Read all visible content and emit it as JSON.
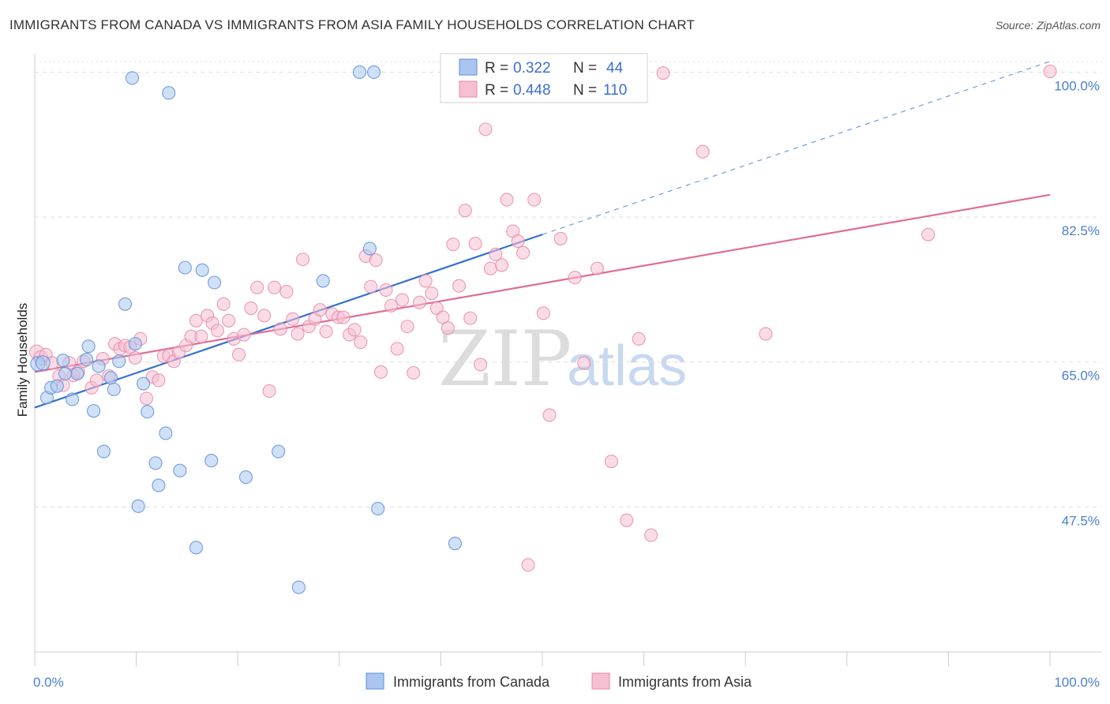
{
  "header": {
    "title": "IMMIGRANTS FROM CANADA VS IMMIGRANTS FROM ASIA FAMILY HOUSEHOLDS CORRELATION CHART",
    "source": "Source: ZipAtlas.com"
  },
  "watermark": {
    "zip": "ZIP",
    "atlas": "atlas"
  },
  "legend_top": {
    "r_label": "R =",
    "n_label": "N =",
    "rows": [
      {
        "r": "0.322",
        "n": "44"
      },
      {
        "r": "0.448",
        "n": "110"
      }
    ]
  },
  "colors": {
    "canada_fill": "#aac6f0",
    "canada_stroke": "#5a8fd8",
    "canada_line": "#3370d0",
    "asia_fill": "#f6bfd2",
    "asia_stroke": "#e889aa",
    "asia_line": "#e06b98",
    "tick_text": "#4a7fd0",
    "grid": "#dddddd"
  },
  "chart_data": {
    "type": "scatter",
    "xlabel": "",
    "ylabel": "Family Households",
    "xlim": [
      0,
      100
    ],
    "ylim": [
      30,
      103
    ],
    "x_tick_labels": [
      "0.0%",
      "100.0%"
    ],
    "y_ticks": [
      {
        "value": 100.0,
        "label": "100.0%"
      },
      {
        "value": 82.5,
        "label": "82.5%"
      },
      {
        "value": 65.0,
        "label": "65.0%"
      },
      {
        "value": 47.5,
        "label": "47.5%"
      }
    ],
    "grid": true,
    "legend_position": "top-center",
    "series": [
      {
        "name": "Immigrants from Canada",
        "trend": {
          "x0": 0,
          "y0": 59.5,
          "x1": 50,
          "y1": 80.4,
          "dash_to_x": 100,
          "dash_to_y": 101.3
        },
        "points": [
          [
            0.3,
            64.8
          ],
          [
            0.8,
            64.9
          ],
          [
            1.2,
            60.7
          ],
          [
            1.6,
            61.9
          ],
          [
            2.2,
            62.1
          ],
          [
            2.8,
            65.2
          ],
          [
            3.0,
            63.6
          ],
          [
            3.7,
            60.5
          ],
          [
            4.2,
            63.6
          ],
          [
            5.1,
            65.3
          ],
          [
            5.3,
            66.9
          ],
          [
            5.8,
            59.1
          ],
          [
            6.3,
            64.5
          ],
          [
            6.8,
            54.2
          ],
          [
            7.5,
            63.1
          ],
          [
            7.8,
            61.7
          ],
          [
            8.3,
            65.1
          ],
          [
            8.9,
            72.0
          ],
          [
            9.6,
            99.3
          ],
          [
            9.9,
            67.2
          ],
          [
            10.2,
            47.6
          ],
          [
            10.7,
            62.4
          ],
          [
            11.1,
            59.0
          ],
          [
            11.9,
            52.8
          ],
          [
            12.2,
            50.1
          ],
          [
            12.9,
            56.4
          ],
          [
            13.2,
            97.5
          ],
          [
            14.3,
            51.9
          ],
          [
            14.8,
            76.4
          ],
          [
            15.9,
            42.6
          ],
          [
            16.5,
            76.1
          ],
          [
            17.4,
            53.1
          ],
          [
            17.7,
            74.6
          ],
          [
            20.8,
            51.1
          ],
          [
            24.0,
            54.2
          ],
          [
            26.0,
            37.8
          ],
          [
            28.4,
            74.8
          ],
          [
            32.0,
            100.0
          ],
          [
            33.0,
            78.7
          ],
          [
            33.4,
            100.0
          ],
          [
            33.8,
            47.3
          ],
          [
            41.4,
            43.1
          ],
          [
            44.0,
            100.0
          ],
          [
            45.2,
            100.0
          ]
        ]
      },
      {
        "name": "Immigrants from Asia",
        "trend": {
          "x0": 0,
          "y0": 63.8,
          "x1": 100,
          "y1": 85.2
        },
        "points": [
          [
            0.2,
            66.2
          ],
          [
            0.6,
            65.5
          ],
          [
            1.1,
            65.9
          ],
          [
            1.7,
            64.9
          ],
          [
            2.4,
            63.3
          ],
          [
            2.8,
            62.2
          ],
          [
            3.4,
            64.9
          ],
          [
            3.8,
            63.4
          ],
          [
            4.3,
            63.8
          ],
          [
            4.8,
            65.1
          ],
          [
            5.6,
            61.9
          ],
          [
            6.1,
            62.8
          ],
          [
            6.7,
            65.4
          ],
          [
            7.3,
            63.3
          ],
          [
            7.9,
            67.2
          ],
          [
            8.4,
            66.6
          ],
          [
            8.9,
            67.0
          ],
          [
            9.4,
            66.8
          ],
          [
            9.9,
            65.5
          ],
          [
            10.4,
            67.8
          ],
          [
            11.0,
            60.6
          ],
          [
            11.6,
            63.2
          ],
          [
            12.2,
            62.8
          ],
          [
            12.7,
            65.7
          ],
          [
            13.2,
            65.8
          ],
          [
            13.7,
            65.1
          ],
          [
            14.2,
            66.2
          ],
          [
            14.9,
            67.0
          ],
          [
            15.4,
            68.1
          ],
          [
            15.9,
            70.0
          ],
          [
            16.4,
            68.1
          ],
          [
            17.0,
            70.6
          ],
          [
            17.5,
            69.7
          ],
          [
            18.0,
            68.8
          ],
          [
            18.6,
            72.0
          ],
          [
            19.1,
            70.0
          ],
          [
            19.6,
            67.8
          ],
          [
            20.1,
            65.9
          ],
          [
            20.6,
            68.3
          ],
          [
            21.3,
            71.5
          ],
          [
            21.9,
            74.0
          ],
          [
            22.6,
            70.6
          ],
          [
            23.1,
            61.5
          ],
          [
            23.6,
            74.0
          ],
          [
            24.2,
            69.0
          ],
          [
            24.8,
            73.5
          ],
          [
            25.4,
            70.2
          ],
          [
            25.9,
            68.4
          ],
          [
            26.4,
            77.4
          ],
          [
            27.0,
            69.3
          ],
          [
            27.6,
            70.2
          ],
          [
            28.1,
            71.3
          ],
          [
            28.7,
            68.7
          ],
          [
            29.3,
            70.8
          ],
          [
            29.9,
            70.4
          ],
          [
            30.4,
            70.4
          ],
          [
            31.0,
            68.3
          ],
          [
            31.5,
            68.9
          ],
          [
            32.1,
            67.4
          ],
          [
            32.6,
            77.8
          ],
          [
            33.1,
            74.1
          ],
          [
            33.6,
            77.3
          ],
          [
            34.1,
            63.8
          ],
          [
            34.6,
            73.7
          ],
          [
            35.1,
            71.8
          ],
          [
            35.7,
            66.6
          ],
          [
            36.2,
            72.5
          ],
          [
            36.7,
            69.3
          ],
          [
            37.3,
            63.7
          ],
          [
            37.9,
            72.2
          ],
          [
            38.5,
            74.8
          ],
          [
            39.1,
            73.3
          ],
          [
            39.6,
            71.5
          ],
          [
            40.2,
            70.4
          ],
          [
            40.7,
            69.1
          ],
          [
            41.2,
            79.2
          ],
          [
            41.8,
            74.2
          ],
          [
            42.4,
            83.3
          ],
          [
            42.9,
            70.3
          ],
          [
            43.4,
            79.3
          ],
          [
            43.9,
            64.7
          ],
          [
            44.4,
            93.1
          ],
          [
            44.9,
            76.3
          ],
          [
            45.4,
            78.0
          ],
          [
            46.0,
            76.7
          ],
          [
            46.5,
            84.6
          ],
          [
            47.1,
            80.8
          ],
          [
            47.6,
            79.6
          ],
          [
            48.1,
            78.2
          ],
          [
            48.6,
            40.5
          ],
          [
            49.2,
            84.6
          ],
          [
            50.1,
            70.9
          ],
          [
            50.7,
            58.6
          ],
          [
            51.8,
            79.9
          ],
          [
            53.2,
            75.2
          ],
          [
            54.1,
            64.9
          ],
          [
            55.4,
            76.3
          ],
          [
            56.8,
            53.0
          ],
          [
            58.3,
            45.9
          ],
          [
            59.5,
            67.8
          ],
          [
            60.7,
            44.1
          ],
          [
            61.9,
            99.9
          ],
          [
            65.8,
            90.4
          ],
          [
            72.0,
            68.4
          ],
          [
            88.0,
            80.4
          ],
          [
            100.0,
            100.1
          ]
        ]
      }
    ]
  },
  "bottom_legend": [
    {
      "label": "Immigrants from Canada"
    },
    {
      "label": "Immigrants from Asia"
    }
  ]
}
